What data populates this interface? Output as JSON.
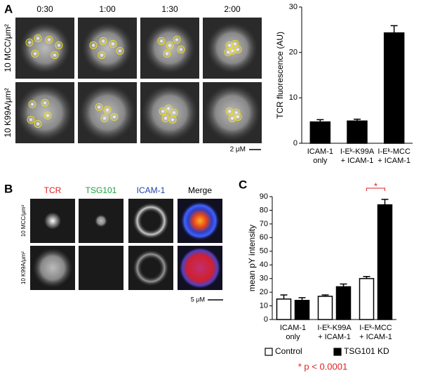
{
  "panel_a": {
    "letter": "A",
    "times": [
      "0:30",
      "1:00",
      "1:30",
      "2:00"
    ],
    "rows": [
      "10 MCC/μm²",
      "10 K99A/μm²"
    ],
    "scale": "2 μM"
  },
  "panel_b": {
    "letter": "B",
    "columns": [
      {
        "label": "TCR",
        "color": "#e02020"
      },
      {
        "label": "TSG101",
        "color": "#20a040"
      },
      {
        "label": "ICAM-1",
        "color": "#2040b0"
      },
      {
        "label": "Merge",
        "color": "#000000"
      }
    ],
    "rows": [
      "10 MCC/μm²",
      "10 K99A/μm²"
    ],
    "scale": "5 μM"
  },
  "panel_c": {
    "letter": "C"
  },
  "chart_data": [
    {
      "type": "bar",
      "y_label": "TCR fluorescence (AU)",
      "categories": [
        [
          "ICAM-1",
          "only"
        ],
        [
          "I-Eᵏ-K99A",
          "+ ICAM-1"
        ],
        [
          "I-Eᵏ-MCC",
          "+ ICAM-1"
        ]
      ],
      "series": [
        {
          "color": "#000000",
          "values": [
            4.7,
            4.9,
            24.3
          ],
          "errors": [
            0.5,
            0.4,
            1.6
          ]
        }
      ],
      "ylim": [
        0,
        30
      ],
      "yticks": [
        0,
        10,
        20,
        30
      ]
    },
    {
      "type": "bar",
      "y_label": "mean pY intensity",
      "categories": [
        [
          "ICAM-1",
          "only"
        ],
        [
          "I-Eᵏ-K99A",
          "+ ICAM-1"
        ],
        [
          "I-Eᵏ-MCC",
          "+ ICAM-1"
        ]
      ],
      "series": [
        {
          "name": "Control",
          "color": "#ffffff",
          "values": [
            15,
            17,
            30
          ],
          "errors": [
            3,
            1,
            1.5
          ]
        },
        {
          "name": "TSG101 KD",
          "color": "#000000",
          "values": [
            14,
            24,
            84
          ],
          "errors": [
            2,
            2,
            4
          ]
        }
      ],
      "ylim": [
        0,
        90
      ],
      "yticks": [
        0,
        10,
        20,
        30,
        40,
        50,
        60,
        70,
        80,
        90
      ],
      "annotation": "*",
      "annotation_color": "#e02020",
      "footnote": "* p < 0.0001"
    }
  ]
}
